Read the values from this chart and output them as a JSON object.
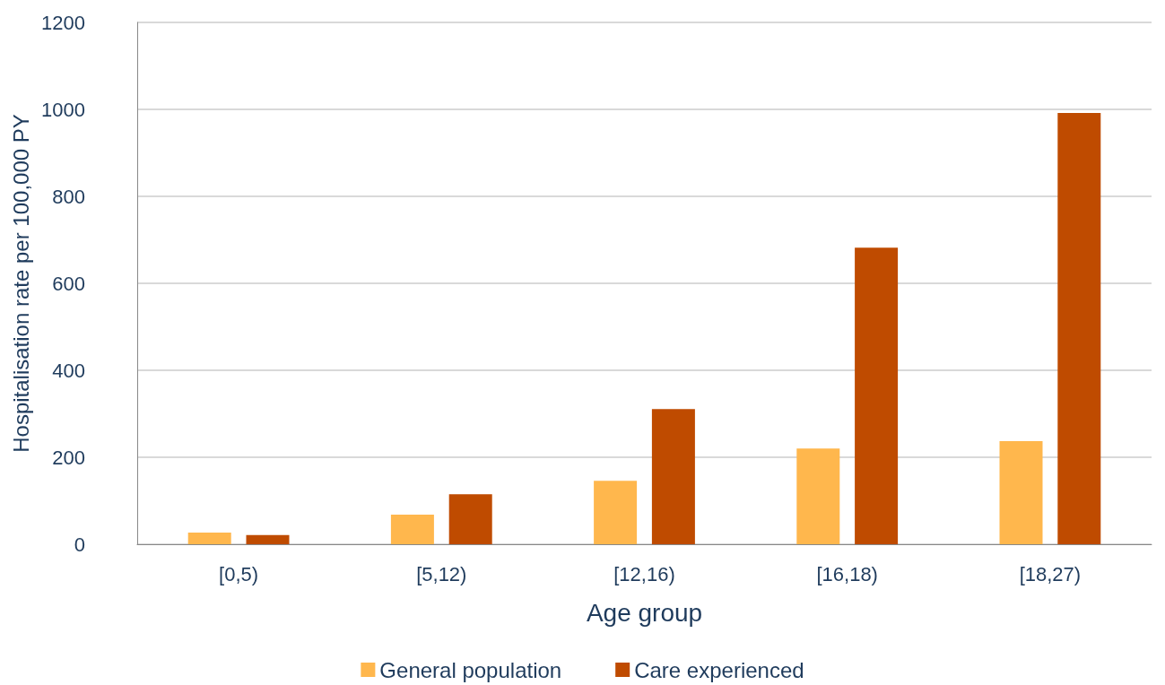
{
  "chart_data": {
    "type": "bar",
    "xlabel": "Age group",
    "ylabel": "Hospitalisation rate per 100,000 PY",
    "categories": [
      "[0,5)",
      "[5,12)",
      "[12,16)",
      "[16,18)",
      "[18,27)"
    ],
    "series": [
      {
        "name": "General population",
        "color": "#ffb74d",
        "values": [
          27,
          68,
          146,
          220,
          237
        ]
      },
      {
        "name": "Care experienced",
        "color": "#bf4b00",
        "values": [
          21,
          115,
          311,
          682,
          992
        ]
      }
    ],
    "ylim": [
      0,
      1200
    ],
    "yticks": [
      0,
      200,
      400,
      600,
      800,
      1000,
      1200
    ],
    "grid": "y",
    "legend": "bottom"
  }
}
